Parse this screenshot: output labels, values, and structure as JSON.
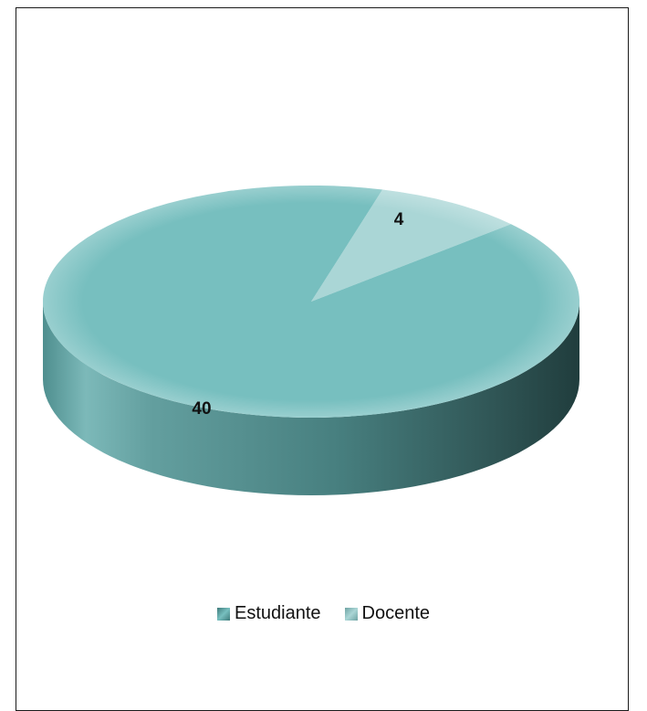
{
  "chart_data": {
    "type": "pie",
    "categories": [
      "Estudiante",
      "Docente"
    ],
    "values": [
      40,
      4
    ],
    "data_labels": [
      "40",
      "4"
    ],
    "colors": {
      "Estudiante": "#77bfbf",
      "Docente": "#aad6d6"
    },
    "style": "3d",
    "legend": {
      "placement": "bottom",
      "entries": [
        "Estudiante",
        "Docente"
      ]
    }
  }
}
